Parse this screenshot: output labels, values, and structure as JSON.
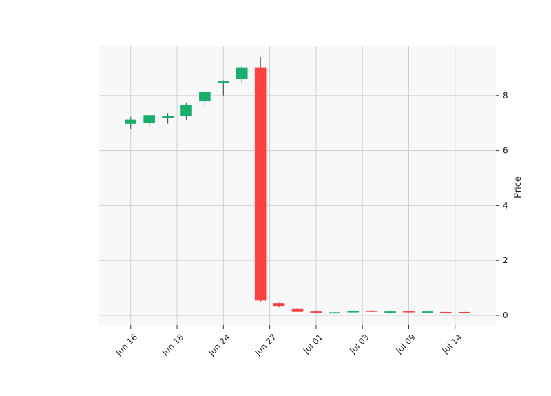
{
  "chart_data": {
    "type": "candlestick",
    "title": "",
    "xlabel": "",
    "ylabel": "Price",
    "ylim": [
      -0.35,
      9.8
    ],
    "yticks": [
      0,
      2,
      4,
      6,
      8
    ],
    "x_tick_labels": [
      {
        "index": 0,
        "label": "Jun 16"
      },
      {
        "index": 2.5,
        "label": "Jun 18"
      },
      {
        "index": 5,
        "label": "Jun 24"
      },
      {
        "index": 7.5,
        "label": "Jun 27"
      },
      {
        "index": 10,
        "label": "Jul 01"
      },
      {
        "index": 12.5,
        "label": "Jul 03"
      },
      {
        "index": 15,
        "label": "Jul 09"
      },
      {
        "index": 17.5,
        "label": "Jul 14"
      }
    ],
    "grid": true,
    "up_color": "#16b06b",
    "down_color": "#ff4040",
    "wick_color": "#555555",
    "background": "#f8f8f8",
    "candles": [
      {
        "open": 6.98,
        "high": 7.22,
        "low": 6.8,
        "close": 7.12
      },
      {
        "open": 7.0,
        "high": 7.3,
        "low": 6.88,
        "close": 7.28
      },
      {
        "open": 7.2,
        "high": 7.36,
        "low": 6.98,
        "close": 7.24
      },
      {
        "open": 7.25,
        "high": 7.75,
        "low": 7.12,
        "close": 7.65
      },
      {
        "open": 7.8,
        "high": 8.15,
        "low": 7.6,
        "close": 8.12
      },
      {
        "open": 8.46,
        "high": 8.56,
        "low": 8.0,
        "close": 8.52
      },
      {
        "open": 8.62,
        "high": 9.08,
        "low": 8.45,
        "close": 9.0
      },
      {
        "open": 9.0,
        "high": 9.4,
        "low": 0.5,
        "close": 0.55
      },
      {
        "open": 0.44,
        "high": 0.46,
        "low": 0.3,
        "close": 0.33
      },
      {
        "open": 0.25,
        "high": 0.27,
        "low": 0.14,
        "close": 0.14
      },
      {
        "open": 0.14,
        "high": 0.15,
        "low": 0.1,
        "close": 0.11
      },
      {
        "open": 0.1,
        "high": 0.12,
        "low": 0.09,
        "close": 0.11
      },
      {
        "open": 0.12,
        "high": 0.2,
        "low": 0.1,
        "close": 0.16
      },
      {
        "open": 0.17,
        "high": 0.18,
        "low": 0.13,
        "close": 0.14
      },
      {
        "open": 0.11,
        "high": 0.15,
        "low": 0.1,
        "close": 0.14
      },
      {
        "open": 0.15,
        "high": 0.16,
        "low": 0.11,
        "close": 0.12
      },
      {
        "open": 0.13,
        "high": 0.15,
        "low": 0.12,
        "close": 0.14
      },
      {
        "open": 0.12,
        "high": 0.13,
        "low": 0.1,
        "close": 0.11
      },
      {
        "open": 0.12,
        "high": 0.13,
        "low": 0.1,
        "close": 0.11
      }
    ]
  }
}
